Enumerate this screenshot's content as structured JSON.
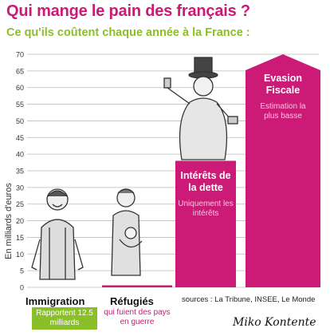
{
  "chart_data": {
    "type": "bar",
    "title": "Qui mange le pain des français ?",
    "subtitle": "Ce qu'ils coûtent chaque année à la France :",
    "ylabel": "En milliards d'euros",
    "xlabel": "",
    "ylim": [
      0,
      70
    ],
    "y_ticks": [
      0,
      5,
      10,
      15,
      20,
      25,
      30,
      35,
      40,
      45,
      50,
      55,
      60,
      65,
      70
    ],
    "grid": true,
    "categories": [
      {
        "label": "Immigration",
        "value": 0,
        "note": "Rapportent 12.5 milliards",
        "color": "#8bbf2a"
      },
      {
        "label": "Réfugiés",
        "value": 0.6,
        "note": "qui fuient des pays en guerre",
        "color": "#cc1a77"
      },
      {
        "label": "Intérêts de la dette",
        "value": 38,
        "note": "Uniquement les intérêts",
        "color": "#cc1a77"
      },
      {
        "label": "Evasion Fiscale",
        "value": 70,
        "note": "Estimation la plus basse",
        "color": "#cc1a77"
      }
    ]
  },
  "sources": "sources :  La Tribune, INSEE, Le Monde",
  "signature": "Miko Kontente",
  "colors": {
    "accent": "#cc1a77",
    "green": "#8bbf2a",
    "grid": "#bbbbbb"
  }
}
